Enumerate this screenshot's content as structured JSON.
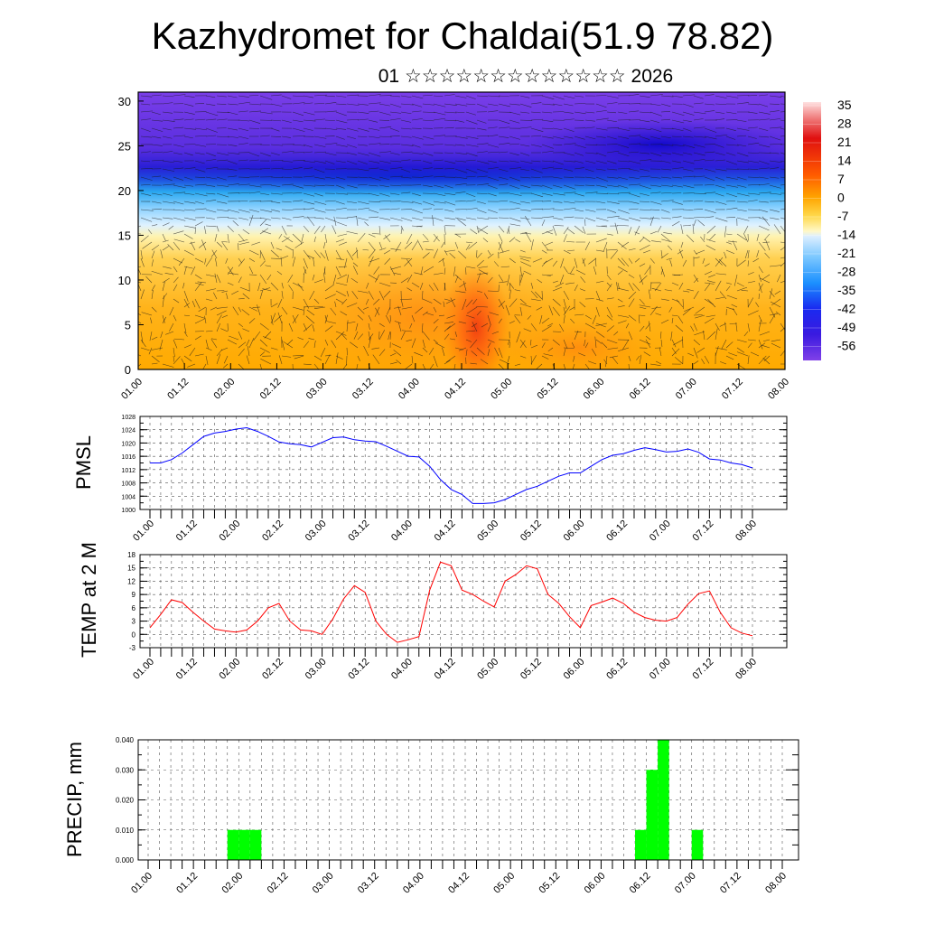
{
  "title": "Kazhydromet for Chaldai(51.9 78.82)",
  "subtitle": "01 ☆☆☆☆☆☆☆☆☆☆☆☆☆ 2026",
  "chart_data": [
    {
      "type": "heatmap",
      "title": "",
      "xlabel": "",
      "ylabel": "",
      "x_tick_labels": [
        "01.00",
        "01.12",
        "02.00",
        "02.12",
        "03.00",
        "03.12",
        "04.00",
        "04.12",
        "05.00",
        "05.12",
        "06.00",
        "06.12",
        "07.00",
        "07.12",
        "08.00"
      ],
      "y_ticks": [
        0,
        5,
        10,
        15,
        20,
        25,
        30
      ],
      "ylim": [
        0,
        31
      ],
      "colorbar_labels": [
        "35",
        "28",
        "21",
        "14",
        "7",
        "0",
        "-7",
        "-14",
        "-21",
        "-28",
        "-35",
        "-42",
        "-49",
        "-56"
      ],
      "overlay": "wind vectors"
    },
    {
      "type": "line",
      "ylabel": "PMSL",
      "ylim": [
        1000,
        1028
      ],
      "y_ticks": [
        "1000",
        "1004",
        "1008",
        "1012",
        "1016",
        "1020",
        "1024",
        "1028"
      ],
      "x_tick_labels": [
        "01.00",
        "01.12",
        "02.00",
        "02.12",
        "03.00",
        "03.12",
        "04.00",
        "04.12",
        "05.00",
        "05.12",
        "06.00",
        "06.12",
        "07.00",
        "07.12",
        "08.00"
      ],
      "color": "#0000ff",
      "x": [
        0,
        3,
        6,
        9,
        12,
        15,
        18,
        21,
        24,
        27,
        30,
        33,
        36,
        39,
        42,
        45,
        48,
        51,
        54,
        57,
        60,
        63,
        66,
        69,
        72,
        75,
        78,
        81,
        84,
        87,
        90,
        93,
        96,
        99,
        102,
        105,
        108,
        111,
        114,
        117,
        120,
        123,
        126,
        129,
        132,
        135,
        138,
        141,
        144,
        147,
        150,
        153,
        156,
        159,
        162,
        165,
        168
      ],
      "values": [
        1014,
        1014,
        1015,
        1017,
        1019.5,
        1022,
        1023,
        1023.5,
        1024.2,
        1024.6,
        1023.5,
        1022,
        1020.3,
        1019.8,
        1019.5,
        1018.8,
        1020.2,
        1021.6,
        1021.8,
        1021,
        1020.6,
        1020.4,
        1019,
        1017.5,
        1016,
        1015.8,
        1013,
        1009,
        1006,
        1004.5,
        1001.8,
        1001.8,
        1002,
        1003,
        1004.5,
        1006,
        1007,
        1008.5,
        1010,
        1011,
        1011,
        1013,
        1015,
        1016.3,
        1016.8,
        1017.8,
        1018.6,
        1018,
        1017.3,
        1017.5,
        1018.2,
        1017.2,
        1015.2,
        1014.9,
        1014,
        1013.5,
        1012.5
      ]
    },
    {
      "type": "line",
      "ylabel": "TEMP at 2 M",
      "ylim": [
        -3,
        18
      ],
      "y_ticks": [
        "-3",
        "0",
        "3",
        "6",
        "9",
        "12",
        "15",
        "18"
      ],
      "x_tick_labels": [
        "01.00",
        "01.12",
        "02.00",
        "02.12",
        "03.00",
        "03.12",
        "04.00",
        "04.12",
        "05.00",
        "05.12",
        "06.00",
        "06.12",
        "07.00",
        "07.12",
        "08.00"
      ],
      "color": "#ff0000",
      "x": [
        0,
        3,
        6,
        9,
        12,
        15,
        18,
        21,
        24,
        27,
        30,
        33,
        36,
        39,
        42,
        45,
        48,
        51,
        54,
        57,
        60,
        63,
        66,
        69,
        72,
        75,
        78,
        81,
        84,
        87,
        90,
        93,
        96,
        99,
        102,
        105,
        108,
        111,
        114,
        117,
        120,
        123,
        126,
        129,
        132,
        135,
        138,
        141,
        144,
        147,
        150,
        153,
        156,
        159,
        162,
        165,
        168
      ],
      "values": [
        1.5,
        4.5,
        7.8,
        7.2,
        5,
        3,
        1.2,
        0.8,
        0.5,
        1,
        3,
        6,
        7,
        3,
        1,
        0.8,
        0,
        3.5,
        8,
        11,
        9.5,
        3,
        0,
        -1.8,
        -1.2,
        -0.5,
        10,
        16.3,
        15.5,
        10,
        9,
        7.5,
        6.2,
        12,
        13.5,
        15.5,
        14.8,
        9,
        7,
        4,
        1.5,
        6.5,
        7.3,
        8.2,
        7,
        5,
        3.8,
        3.2,
        3,
        3.8,
        6.8,
        9.2,
        9.8,
        5,
        1.5,
        0.3,
        -0.3
      ]
    },
    {
      "type": "bar",
      "ylabel": "PRECIP, mm",
      "ylim": [
        0,
        0.04
      ],
      "y_ticks": [
        "0.000",
        "0.010",
        "0.020",
        "0.030",
        "0.040"
      ],
      "x_tick_labels": [
        "01.00",
        "01.12",
        "02.00",
        "02.12",
        "03.00",
        "03.12",
        "04.00",
        "04.12",
        "05.00",
        "05.12",
        "06.00",
        "06.12",
        "07.00",
        "07.12",
        "08.00"
      ],
      "color": "#00ff00",
      "bars": [
        {
          "x_start": 21,
          "x_end": 24,
          "value": 0.01
        },
        {
          "x_start": 24,
          "x_end": 27,
          "value": 0.01
        },
        {
          "x_start": 27,
          "x_end": 30,
          "value": 0.01
        },
        {
          "x_start": 129,
          "x_end": 132,
          "value": 0.01
        },
        {
          "x_start": 132,
          "x_end": 135,
          "value": 0.03
        },
        {
          "x_start": 135,
          "x_end": 138,
          "value": 0.04
        },
        {
          "x_start": 144,
          "x_end": 147,
          "value": 0.01
        }
      ]
    }
  ]
}
